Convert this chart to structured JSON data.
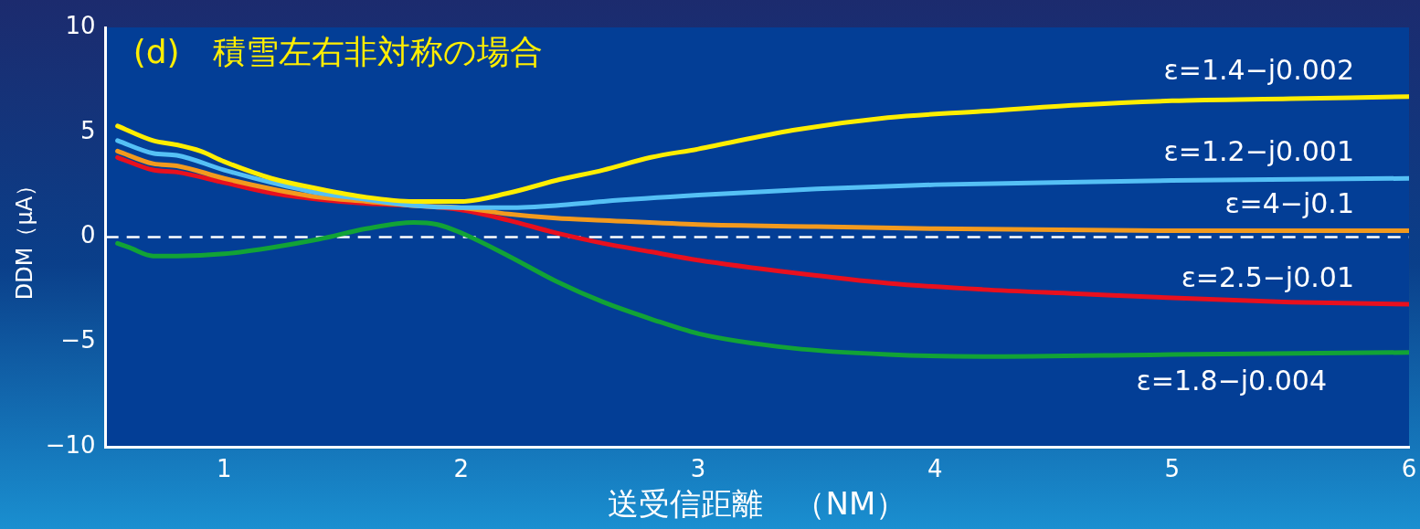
{
  "chart_data": {
    "type": "line",
    "title": "(d)　積雪左右非対称の場合",
    "xlabel": "送受信距離　（NM）",
    "ylabel": "DDM（μA）",
    "xlim": [
      0.5,
      6
    ],
    "xticks": [
      1,
      2,
      3,
      4,
      5,
      6
    ],
    "ylim": [
      -10,
      10
    ],
    "yticks": [
      {
        "value": -10,
        "label": "−10"
      },
      {
        "value": -5,
        "label": "−5"
      },
      0,
      5,
      10
    ],
    "grid": false,
    "legend": false,
    "marker": "none",
    "line_style": "solid",
    "ref_lines": [
      {
        "axis": "y",
        "value": 0,
        "color": "#ffffff",
        "line_style": "dashed"
      }
    ],
    "series": [
      {
        "name": "ε=1.4−j0.002",
        "color": "#ffee00",
        "x": [
          0.55,
          0.7,
          0.8,
          0.9,
          1.0,
          1.2,
          1.4,
          1.6,
          1.8,
          2.0,
          2.2,
          2.4,
          2.6,
          2.8,
          3.0,
          3.4,
          3.8,
          4.2,
          4.6,
          5.0,
          5.5,
          6.0
        ],
        "values": [
          5.3,
          4.6,
          4.4,
          4.1,
          3.6,
          2.8,
          2.3,
          1.9,
          1.7,
          1.7,
          2.1,
          2.7,
          3.2,
          3.8,
          4.2,
          5.1,
          5.7,
          6.0,
          6.3,
          6.5,
          6.6,
          6.7
        ]
      },
      {
        "name": "ε=1.2−j0.001",
        "color": "#55c0f5",
        "x": [
          0.55,
          0.7,
          0.8,
          1.0,
          1.2,
          1.4,
          1.6,
          1.8,
          2.0,
          2.2,
          2.4,
          2.6,
          3.0,
          3.5,
          4.0,
          4.5,
          5.0,
          6.0
        ],
        "values": [
          4.6,
          4.0,
          3.9,
          3.2,
          2.6,
          2.1,
          1.8,
          1.5,
          1.4,
          1.4,
          1.5,
          1.7,
          2.0,
          2.3,
          2.5,
          2.6,
          2.7,
          2.8
        ]
      },
      {
        "name": "ε=4−j0.1",
        "color": "#f39a1e",
        "x": [
          0.55,
          0.7,
          0.8,
          1.0,
          1.2,
          1.4,
          1.6,
          1.8,
          2.0,
          2.2,
          2.4,
          2.6,
          3.0,
          3.5,
          4.0,
          5.0,
          6.0
        ],
        "values": [
          4.1,
          3.5,
          3.4,
          2.8,
          2.3,
          1.9,
          1.7,
          1.5,
          1.4,
          1.1,
          0.9,
          0.8,
          0.6,
          0.5,
          0.4,
          0.3,
          0.3
        ]
      },
      {
        "name": "ε=2.5−j0.01",
        "color": "#e8101e",
        "x": [
          0.55,
          0.7,
          0.8,
          1.0,
          1.2,
          1.4,
          1.6,
          1.8,
          2.0,
          2.2,
          2.4,
          2.6,
          2.8,
          3.0,
          3.4,
          3.8,
          4.2,
          4.6,
          5.0,
          5.5,
          6.0
        ],
        "values": [
          3.8,
          3.2,
          3.1,
          2.6,
          2.1,
          1.8,
          1.6,
          1.5,
          1.3,
          0.8,
          0.2,
          -0.3,
          -0.7,
          -1.1,
          -1.7,
          -2.2,
          -2.5,
          -2.7,
          -2.9,
          -3.1,
          -3.2
        ]
      },
      {
        "name": "ε=1.8−j0.004",
        "color": "#12a336",
        "x": [
          0.55,
          0.6,
          0.7,
          0.8,
          1.0,
          1.2,
          1.4,
          1.6,
          1.8,
          1.9,
          2.0,
          2.2,
          2.4,
          2.6,
          2.8,
          3.0,
          3.4,
          3.8,
          4.2,
          5.0,
          6.0
        ],
        "values": [
          -0.3,
          -0.5,
          -0.9,
          -0.9,
          -0.8,
          -0.5,
          -0.1,
          0.4,
          0.7,
          0.6,
          0.2,
          -0.9,
          -2.1,
          -3.1,
          -3.9,
          -4.6,
          -5.3,
          -5.6,
          -5.7,
          -5.6,
          -5.5
        ]
      }
    ]
  }
}
